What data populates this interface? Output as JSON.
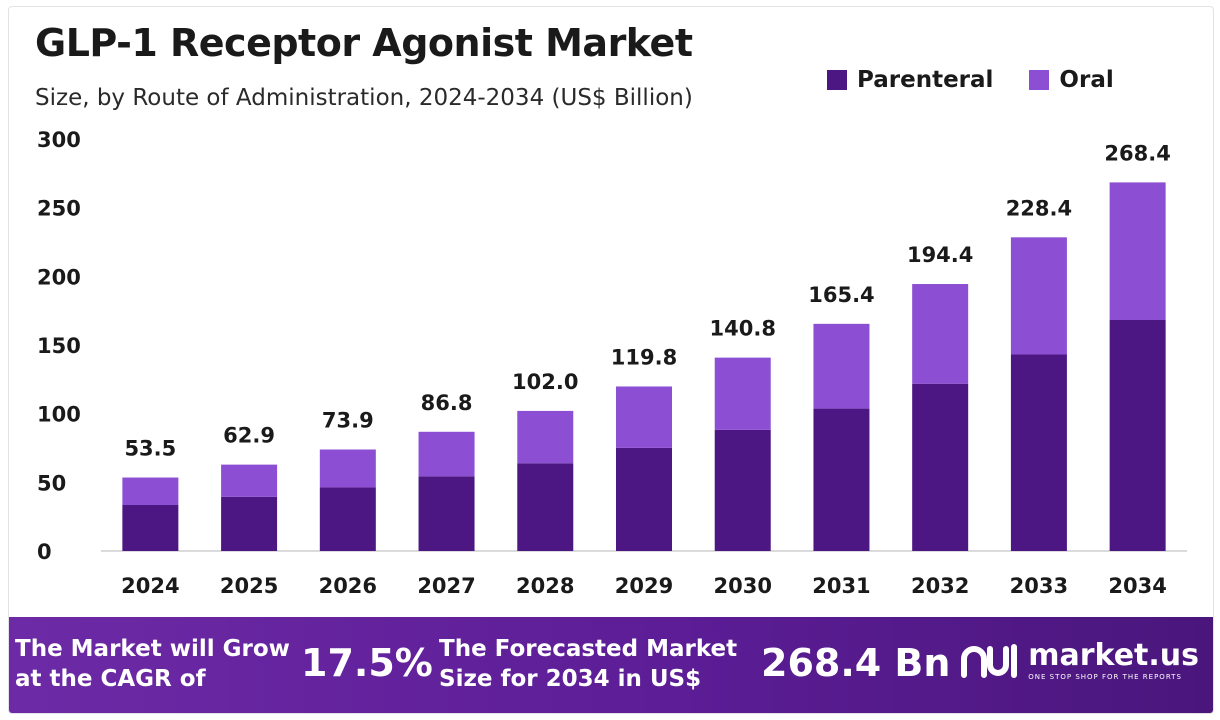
{
  "chart_data": {
    "type": "bar",
    "stacked": true,
    "title": "GLP-1 Receptor Agonist Market",
    "subtitle": "Size, by Route of Administration, 2024-2034 (US$ Billion)",
    "categories": [
      "2024",
      "2025",
      "2026",
      "2027",
      "2028",
      "2029",
      "2030",
      "2031",
      "2032",
      "2033",
      "2034"
    ],
    "series": [
      {
        "name": "Parenteral",
        "color": "#4c1782",
        "values": [
          33.5,
          39.4,
          46.3,
          54.4,
          63.9,
          75.1,
          88.2,
          103.7,
          121.8,
          143.1,
          168.2
        ]
      },
      {
        "name": "Oral",
        "color": "#8c4fd3",
        "values": [
          20.0,
          23.5,
          27.6,
          32.4,
          38.1,
          44.7,
          52.6,
          61.7,
          72.6,
          85.3,
          100.2
        ]
      }
    ],
    "totals": [
      "53.5",
      "62.9",
      "73.9",
      "86.8",
      "102.0",
      "119.8",
      "140.8",
      "165.4",
      "194.4",
      "228.4",
      "268.4"
    ],
    "yticks": [
      0,
      50,
      100,
      150,
      200,
      250,
      300
    ],
    "ylim": [
      0,
      300
    ],
    "xlabel": "",
    "ylabel": "",
    "legend_position": "top-right",
    "grid": false
  },
  "banner": {
    "cagr_label": "The Market will Grow\nat the CAGR of",
    "cagr_value": "17.5%",
    "forecast_label": "The Forecasted Market\nSize for 2034 in US$",
    "forecast_value": "268.4 Bn",
    "logo_name": "market.us",
    "logo_tagline": "ONE STOP SHOP FOR THE REPORTS",
    "background_color": "#5c1d96"
  }
}
